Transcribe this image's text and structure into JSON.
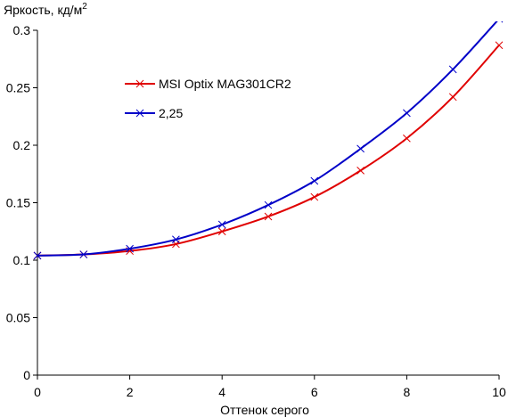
{
  "chart_data": {
    "type": "line",
    "title": "",
    "ylabel": "Яркость, кд/м",
    "ylabel_sup": "2",
    "xlabel": "Оттенок серого",
    "xlim": [
      0,
      10
    ],
    "ylim": [
      0,
      0.3
    ],
    "x_ticks": [
      "0",
      "2",
      "4",
      "6",
      "8",
      "10"
    ],
    "y_ticks": [
      "0",
      "0.05",
      "0.1",
      "0.15",
      "0.2",
      "0.25",
      "0.3"
    ],
    "grid": false,
    "legend_position": "upper-left-inside",
    "x": [
      0,
      1,
      2,
      3,
      4,
      5,
      6,
      7,
      8,
      9,
      10
    ],
    "series": [
      {
        "name": "MSI Optix MAG301CR2",
        "color": "#e00000",
        "marker": "x",
        "values": [
          0.104,
          0.105,
          0.108,
          0.114,
          0.125,
          0.138,
          0.155,
          0.178,
          0.206,
          0.242,
          0.287
        ]
      },
      {
        "name": "2,25",
        "color": "#0000c8",
        "marker": "x",
        "values": [
          0.104,
          0.105,
          0.11,
          0.118,
          0.131,
          0.148,
          0.169,
          0.197,
          0.228,
          0.266,
          0.31
        ]
      }
    ]
  }
}
